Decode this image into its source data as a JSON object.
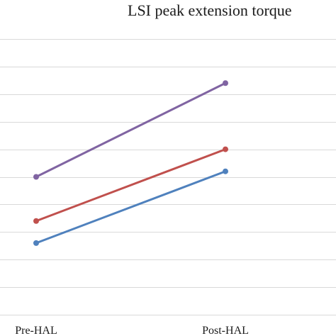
{
  "chart_data": {
    "type": "line",
    "title": "LSI peak extension torque",
    "categories": [
      "Pre-HAL",
      "Post-HAL"
    ],
    "series": [
      {
        "values": [
          5.0,
          8.4
        ],
        "color": "#8064a2"
      },
      {
        "values": [
          3.4,
          6.0
        ],
        "color": "#c0504d"
      },
      {
        "values": [
          2.6,
          5.2
        ],
        "color": "#4f81bd"
      }
    ],
    "ylim": [
      0,
      10
    ],
    "grid": true,
    "legend": "none"
  }
}
